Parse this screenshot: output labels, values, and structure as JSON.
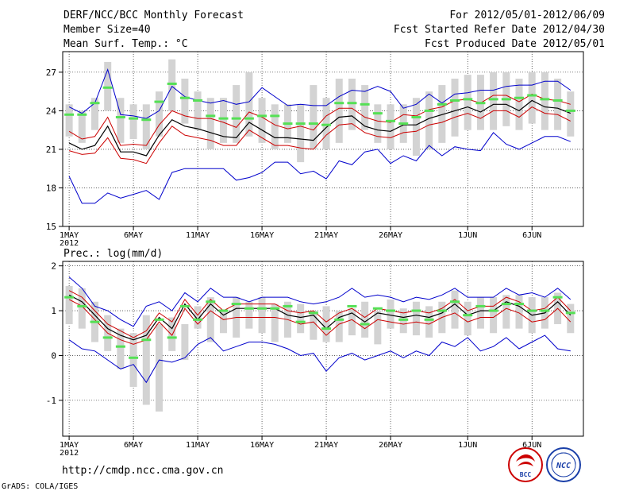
{
  "header": {
    "title": "DERF/NCC/BCC Monthly Forecast",
    "member_size": "Member Size=40",
    "variable": "Mean Surf. Temp.: °C",
    "period": "For 2012/05/01-2012/06/09",
    "refer_date": "Fcst Started Refer Date 2012/04/30",
    "produced_date": "Fcst Produced Date 2012/05/01"
  },
  "footer": {
    "url": "http://cmdp.ncc.cma.gov.cn",
    "credit": "GrADS: COLA/IGES",
    "logos": [
      {
        "icon": "bcc-logo",
        "text": "BCC",
        "color": "#cc0000"
      },
      {
        "icon": "ncc-logo",
        "text": "NCC",
        "color": "#1a3fa8"
      }
    ]
  },
  "colors": {
    "max_min": "#0000cc",
    "spread": "#cc0000",
    "mean": "#000000",
    "box": "#d3d3d3",
    "median": "#55e055",
    "axis": "#000000",
    "grid": "#000000"
  },
  "chart_data": [
    {
      "type": "line",
      "title": "Mean Surf. Temp.: °C",
      "xlabel": "",
      "ylabel": "",
      "days": 40,
      "start_day": 1,
      "xticks": [
        {
          "day": 1,
          "label": "1MAY",
          "sub": "2012"
        },
        {
          "day": 6,
          "label": "6MAY"
        },
        {
          "day": 11,
          "label": "11MAY"
        },
        {
          "day": 16,
          "label": "16MAY"
        },
        {
          "day": 21,
          "label": "21MAY"
        },
        {
          "day": 26,
          "label": "26MAY"
        },
        {
          "day": 32,
          "label": "1JUN"
        },
        {
          "day": 37,
          "label": "6JUN"
        }
      ],
      "yticks": [
        15,
        18,
        21,
        24,
        27
      ],
      "ylim": [
        15,
        28.6
      ],
      "xlim": [
        0.5,
        41
      ],
      "grid": true,
      "series": [
        {
          "name": "max",
          "role": "max_min",
          "values": [
            24.3,
            23.8,
            24.6,
            27.2,
            23.7,
            23.6,
            23.4,
            24.0,
            25.9,
            25.1,
            24.8,
            24.6,
            24.8,
            24.5,
            24.7,
            25.8,
            25.1,
            24.4,
            24.5,
            24.4,
            24.4,
            25.1,
            25.6,
            25.5,
            25.9,
            25.5,
            24.2,
            24.5,
            25.3,
            24.6,
            25.3,
            25.4,
            25.6,
            25.6,
            25.9,
            26.0,
            26.0,
            26.3,
            26.3,
            25.6
          ]
        },
        {
          "name": "min",
          "role": "max_min",
          "values": [
            18.9,
            16.8,
            16.8,
            17.6,
            17.2,
            17.5,
            17.8,
            17.1,
            19.2,
            19.5,
            19.5,
            19.5,
            19.5,
            18.6,
            18.8,
            19.2,
            20.0,
            20.0,
            19.1,
            19.3,
            18.7,
            20.1,
            19.8,
            20.8,
            21.0,
            19.9,
            20.5,
            20.1,
            21.3,
            20.5,
            21.2,
            21.0,
            20.9,
            22.3,
            21.4,
            21.0,
            21.5,
            22.0,
            22.0,
            21.6
          ]
        },
        {
          "name": "upper",
          "role": "spread",
          "values": [
            22.4,
            21.8,
            22.0,
            23.5,
            21.3,
            21.4,
            21.3,
            22.9,
            24.0,
            23.6,
            23.4,
            23.4,
            23.1,
            22.7,
            23.9,
            23.5,
            22.9,
            22.6,
            22.8,
            22.5,
            23.6,
            24.2,
            24.2,
            23.5,
            23.2,
            23.1,
            23.7,
            23.6,
            24.1,
            24.3,
            24.8,
            24.9,
            24.6,
            25.2,
            25.2,
            24.7,
            25.3,
            24.9,
            24.8,
            24.5
          ]
        },
        {
          "name": "mean",
          "role": "mean",
          "values": [
            21.5,
            21.0,
            21.3,
            22.8,
            20.8,
            20.8,
            20.5,
            22.1,
            23.3,
            22.8,
            22.6,
            22.3,
            22.0,
            21.9,
            23.1,
            22.5,
            21.9,
            21.9,
            21.8,
            21.7,
            22.7,
            23.5,
            23.6,
            22.8,
            22.5,
            22.4,
            22.9,
            22.9,
            23.4,
            23.7,
            24.0,
            24.3,
            23.9,
            24.5,
            24.5,
            24.0,
            24.8,
            24.3,
            24.2,
            23.8
          ]
        },
        {
          "name": "lower",
          "role": "spread",
          "values": [
            20.9,
            20.6,
            20.7,
            21.9,
            20.3,
            20.2,
            19.9,
            21.5,
            22.8,
            22.1,
            21.9,
            21.7,
            21.3,
            21.3,
            22.5,
            21.9,
            21.3,
            21.3,
            21.1,
            21.0,
            22.1,
            22.9,
            23.0,
            22.3,
            22.0,
            21.9,
            22.3,
            22.4,
            22.9,
            23.1,
            23.5,
            23.8,
            23.4,
            24.0,
            24.0,
            23.5,
            24.3,
            23.8,
            23.7,
            23.2
          ]
        },
        {
          "name": "median",
          "role": "median",
          "values": [
            23.7,
            23.7,
            24.6,
            25.8,
            23.5,
            23.4,
            23.3,
            24.7,
            26.1,
            25.0,
            24.8,
            23.6,
            23.4,
            23.4,
            23.4,
            23.6,
            23.6,
            23.0,
            23.0,
            23.0,
            22.9,
            24.6,
            24.6,
            24.5,
            23.8,
            23.2,
            23.0,
            23.5,
            24.0,
            24.5,
            24.8,
            24.9,
            24.6,
            24.9,
            24.9,
            25.0,
            25.2,
            24.9,
            24.8,
            24.0
          ]
        }
      ],
      "boxes": [
        [
          22.0,
          24.5
        ],
        [
          21.5,
          24.0
        ],
        [
          22.5,
          25.0
        ],
        [
          24.0,
          27.8
        ],
        [
          21.5,
          25.0
        ],
        [
          21.8,
          24.5
        ],
        [
          21.0,
          24.5
        ],
        [
          22.0,
          25.5
        ],
        [
          24.0,
          28.0
        ],
        [
          23.0,
          26.5
        ],
        [
          22.5,
          25.5
        ],
        [
          21.0,
          25.0
        ],
        [
          21.5,
          25.0
        ],
        [
          21.5,
          26.0
        ],
        [
          22.0,
          27.0
        ],
        [
          21.5,
          25.0
        ],
        [
          21.0,
          24.5
        ],
        [
          21.5,
          24.5
        ],
        [
          20.0,
          24.5
        ],
        [
          21.0,
          26.0
        ],
        [
          21.0,
          25.0
        ],
        [
          21.5,
          26.5
        ],
        [
          22.5,
          26.5
        ],
        [
          22.5,
          26.0
        ],
        [
          21.5,
          24.5
        ],
        [
          21.0,
          24.5
        ],
        [
          21.5,
          24.5
        ],
        [
          20.5,
          25.0
        ],
        [
          21.0,
          25.5
        ],
        [
          21.5,
          26.0
        ],
        [
          22.0,
          26.5
        ],
        [
          22.5,
          26.8
        ],
        [
          22.5,
          26.8
        ],
        [
          22.5,
          27.0
        ],
        [
          22.8,
          27.0
        ],
        [
          22.5,
          26.5
        ],
        [
          23.0,
          27.0
        ],
        [
          22.5,
          27.0
        ],
        [
          22.5,
          26.5
        ],
        [
          22.0,
          25.5
        ]
      ]
    },
    {
      "type": "line",
      "title": "Prec.: log(mm/d)",
      "xlabel": "",
      "ylabel": "",
      "days": 40,
      "start_day": 1,
      "xticks": [
        {
          "day": 1,
          "label": "1MAY",
          "sub": "2012"
        },
        {
          "day": 6,
          "label": "6MAY"
        },
        {
          "day": 11,
          "label": "11MAY"
        },
        {
          "day": 16,
          "label": "16MAY"
        },
        {
          "day": 21,
          "label": "21MAY"
        },
        {
          "day": 26,
          "label": "26MAY"
        },
        {
          "day": 32,
          "label": "1JUN"
        },
        {
          "day": 37,
          "label": "6JUN"
        }
      ],
      "yticks": [
        -1,
        0,
        1,
        2
      ],
      "ylim": [
        -1.8,
        2.1
      ],
      "xlim": [
        0.5,
        41
      ],
      "grid": true,
      "series": [
        {
          "name": "max",
          "role": "max_min",
          "values": [
            1.75,
            1.5,
            1.1,
            1.0,
            0.8,
            0.65,
            1.1,
            1.2,
            1.0,
            1.4,
            1.2,
            1.5,
            1.3,
            1.3,
            1.2,
            1.3,
            1.3,
            1.3,
            1.2,
            1.15,
            1.2,
            1.3,
            1.5,
            1.3,
            1.35,
            1.3,
            1.2,
            1.3,
            1.25,
            1.35,
            1.5,
            1.3,
            1.3,
            1.3,
            1.5,
            1.35,
            1.4,
            1.3,
            1.5,
            1.25
          ]
        },
        {
          "name": "min",
          "role": "max_min",
          "values": [
            0.35,
            0.15,
            0.1,
            -0.1,
            -0.3,
            -0.2,
            -0.6,
            -0.1,
            -0.15,
            -0.05,
            0.25,
            0.4,
            0.1,
            0.2,
            0.3,
            0.3,
            0.25,
            0.15,
            0.0,
            0.05,
            -0.35,
            -0.05,
            0.05,
            -0.1,
            0.0,
            0.1,
            -0.05,
            0.1,
            0.0,
            0.3,
            0.2,
            0.4,
            0.1,
            0.2,
            0.4,
            0.15,
            0.3,
            0.45,
            0.15,
            0.1
          ]
        },
        {
          "name": "upper",
          "role": "spread",
          "values": [
            1.45,
            1.3,
            1.0,
            0.7,
            0.55,
            0.4,
            0.55,
            0.95,
            0.75,
            1.25,
            0.9,
            1.25,
            1.0,
            1.15,
            1.15,
            1.15,
            1.15,
            1.0,
            0.95,
            1.0,
            0.75,
            0.95,
            1.05,
            0.85,
            1.05,
            1.0,
            0.95,
            1.0,
            0.95,
            1.05,
            1.25,
            1.0,
            1.1,
            1.1,
            1.3,
            1.2,
            1.0,
            1.05,
            1.3,
            1.0
          ]
        },
        {
          "name": "mean",
          "role": "mean",
          "values": [
            1.35,
            1.2,
            0.9,
            0.6,
            0.45,
            0.35,
            0.45,
            0.85,
            0.6,
            1.15,
            0.8,
            1.15,
            0.9,
            1.05,
            1.05,
            1.05,
            1.05,
            0.9,
            0.85,
            0.9,
            0.6,
            0.85,
            0.95,
            0.75,
            0.95,
            0.9,
            0.85,
            0.9,
            0.85,
            0.95,
            1.15,
            0.9,
            1.0,
            1.0,
            1.2,
            1.1,
            0.9,
            0.95,
            1.2,
            0.9
          ]
        },
        {
          "name": "lower",
          "role": "spread",
          "values": [
            1.25,
            1.1,
            0.8,
            0.5,
            0.35,
            0.25,
            0.35,
            0.75,
            0.45,
            1.05,
            0.7,
            1.0,
            0.8,
            0.85,
            0.85,
            0.85,
            0.85,
            0.8,
            0.7,
            0.75,
            0.45,
            0.7,
            0.8,
            0.6,
            0.8,
            0.75,
            0.7,
            0.75,
            0.7,
            0.85,
            0.95,
            0.75,
            0.85,
            0.85,
            1.05,
            0.95,
            0.75,
            0.8,
            1.05,
            0.75
          ]
        },
        {
          "name": "median",
          "role": "median",
          "values": [
            1.3,
            1.1,
            0.75,
            0.4,
            0.2,
            -0.05,
            0.35,
            0.8,
            0.4,
            1.1,
            0.8,
            1.2,
            1.0,
            1.15,
            1.05,
            1.05,
            1.05,
            1.1,
            0.75,
            0.95,
            0.6,
            0.8,
            1.1,
            0.7,
            1.05,
            1.0,
            0.8,
            1.0,
            0.8,
            1.0,
            1.2,
            0.9,
            1.1,
            1.0,
            1.15,
            1.15,
            1.0,
            1.0,
            1.3,
            0.95
          ]
        }
      ],
      "boxes": [
        [
          0.7,
          1.55
        ],
        [
          0.6,
          1.5
        ],
        [
          0.3,
          1.2
        ],
        [
          0.1,
          0.9
        ],
        [
          -0.3,
          0.6
        ],
        [
          -0.7,
          0.5
        ],
        [
          -1.1,
          0.9
        ],
        [
          -1.25,
          0.7
        ],
        [
          0.1,
          0.85
        ],
        [
          -0.1,
          0.7
        ],
        [
          0.6,
          1.1
        ],
        [
          0.3,
          1.3
        ],
        [
          0.5,
          1.0
        ],
        [
          0.4,
          1.3
        ],
        [
          0.6,
          1.2
        ],
        [
          0.5,
          1.3
        ],
        [
          0.3,
          1.15
        ],
        [
          0.4,
          1.2
        ],
        [
          0.5,
          1.15
        ],
        [
          0.35,
          1.0
        ],
        [
          0.3,
          1.1
        ],
        [
          0.3,
          1.0
        ],
        [
          0.45,
          1.05
        ],
        [
          0.4,
          1.2
        ],
        [
          0.25,
          1.0
        ],
        [
          0.6,
          1.25
        ],
        [
          0.5,
          1.05
        ],
        [
          0.45,
          1.2
        ],
        [
          0.4,
          1.1
        ],
        [
          0.5,
          1.2
        ],
        [
          0.6,
          1.45
        ],
        [
          0.45,
          1.2
        ],
        [
          0.6,
          1.3
        ],
        [
          0.5,
          1.3
        ],
        [
          0.6,
          1.35
        ],
        [
          0.6,
          1.35
        ],
        [
          0.5,
          1.3
        ],
        [
          0.6,
          1.3
        ],
        [
          0.7,
          1.4
        ],
        [
          0.5,
          1.15
        ]
      ]
    }
  ]
}
